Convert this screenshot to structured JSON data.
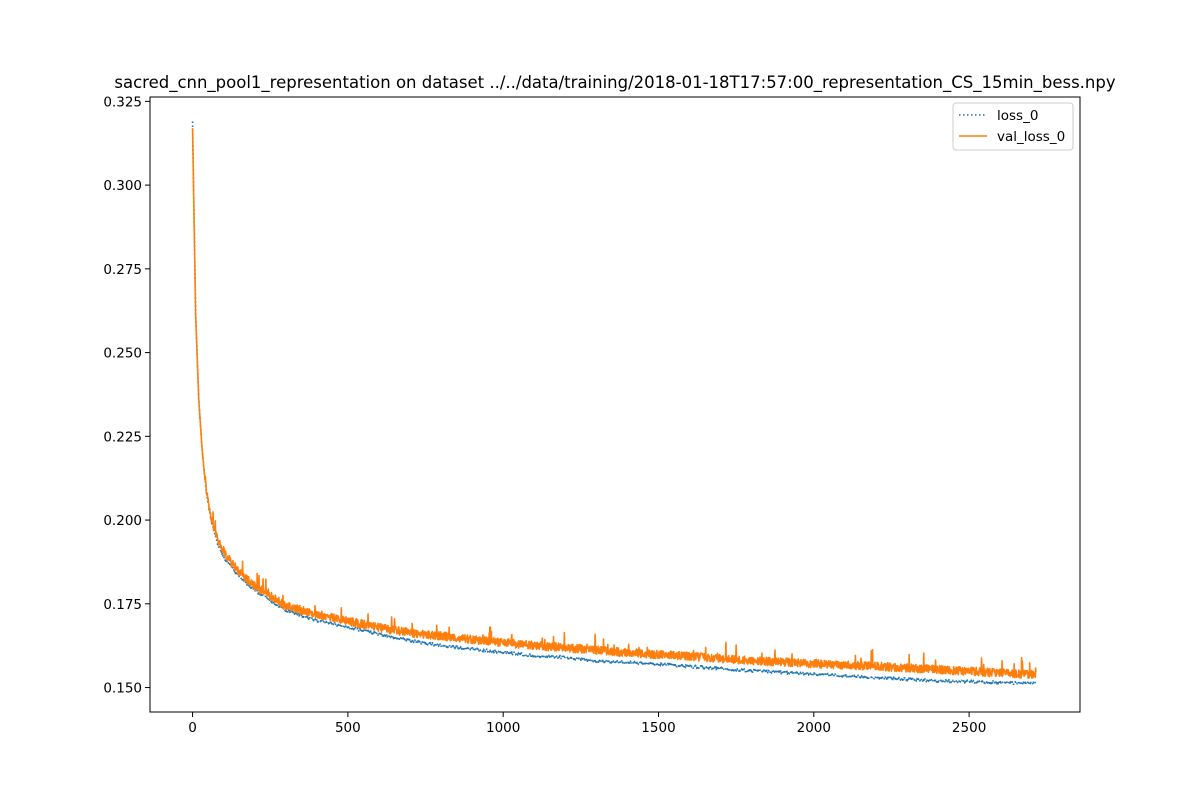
{
  "chart_data": {
    "type": "line",
    "title": "sacred_cnn_pool1_representation on dataset ../../data/training/2018-01-18T17:57:00_representation_CS_15min_bess.npy",
    "xlabel": "",
    "ylabel": "",
    "xlim": [
      -137,
      2857
    ],
    "ylim": [
      0.1427,
      0.3263
    ],
    "xticks": [
      0,
      500,
      1000,
      1500,
      2000,
      2500
    ],
    "yticks": [
      0.15,
      0.175,
      0.2,
      0.225,
      0.25,
      0.275,
      0.3,
      0.325
    ],
    "xtick_labels": [
      "0",
      "500",
      "1000",
      "1500",
      "2000",
      "2500"
    ],
    "ytick_labels": [
      "0.150",
      "0.175",
      "0.200",
      "0.225",
      "0.250",
      "0.275",
      "0.300",
      "0.325"
    ],
    "grid": false,
    "legend_position": "top-right",
    "series": [
      {
        "name": "loss_0",
        "color": "#1f77b4",
        "style": "dotted",
        "x": [
          0,
          5,
          10,
          20,
          30,
          40,
          50,
          60,
          80,
          100,
          150,
          200,
          250,
          300,
          400,
          500,
          600,
          700,
          800,
          900,
          1000,
          1100,
          1200,
          1300,
          1400,
          1500,
          1600,
          1700,
          1800,
          1900,
          2000,
          2100,
          2200,
          2300,
          2400,
          2500,
          2600,
          2700,
          2715
        ],
        "y": [
          0.319,
          0.29,
          0.262,
          0.236,
          0.222,
          0.212,
          0.205,
          0.2,
          0.193,
          0.189,
          0.183,
          0.179,
          0.176,
          0.173,
          0.17,
          0.168,
          0.166,
          0.164,
          0.1625,
          0.1615,
          0.1605,
          0.1595,
          0.159,
          0.158,
          0.1575,
          0.157,
          0.1563,
          0.1557,
          0.155,
          0.1545,
          0.154,
          0.1535,
          0.153,
          0.1525,
          0.152,
          0.1518,
          0.1515,
          0.1512,
          0.1512
        ]
      },
      {
        "name": "val_loss_0",
        "color": "#ff7f0e",
        "style": "solid",
        "x": [
          0,
          5,
          10,
          20,
          30,
          40,
          50,
          60,
          80,
          100,
          150,
          200,
          250,
          300,
          400,
          500,
          600,
          700,
          800,
          900,
          1000,
          1100,
          1200,
          1300,
          1400,
          1500,
          1600,
          1700,
          1800,
          1900,
          2000,
          2100,
          2200,
          2300,
          2400,
          2500,
          2600,
          2700,
          2715
        ],
        "y": [
          0.317,
          0.289,
          0.261,
          0.236,
          0.222,
          0.212,
          0.205,
          0.2,
          0.194,
          0.19,
          0.184,
          0.18,
          0.177,
          0.174,
          0.1715,
          0.1695,
          0.1675,
          0.166,
          0.165,
          0.164,
          0.163,
          0.1622,
          0.1615,
          0.1608,
          0.16,
          0.1595,
          0.159,
          0.1583,
          0.1577,
          0.1572,
          0.1568,
          0.1563,
          0.156,
          0.1555,
          0.155,
          0.1545,
          0.154,
          0.1535,
          0.153
        ]
      }
    ]
  }
}
